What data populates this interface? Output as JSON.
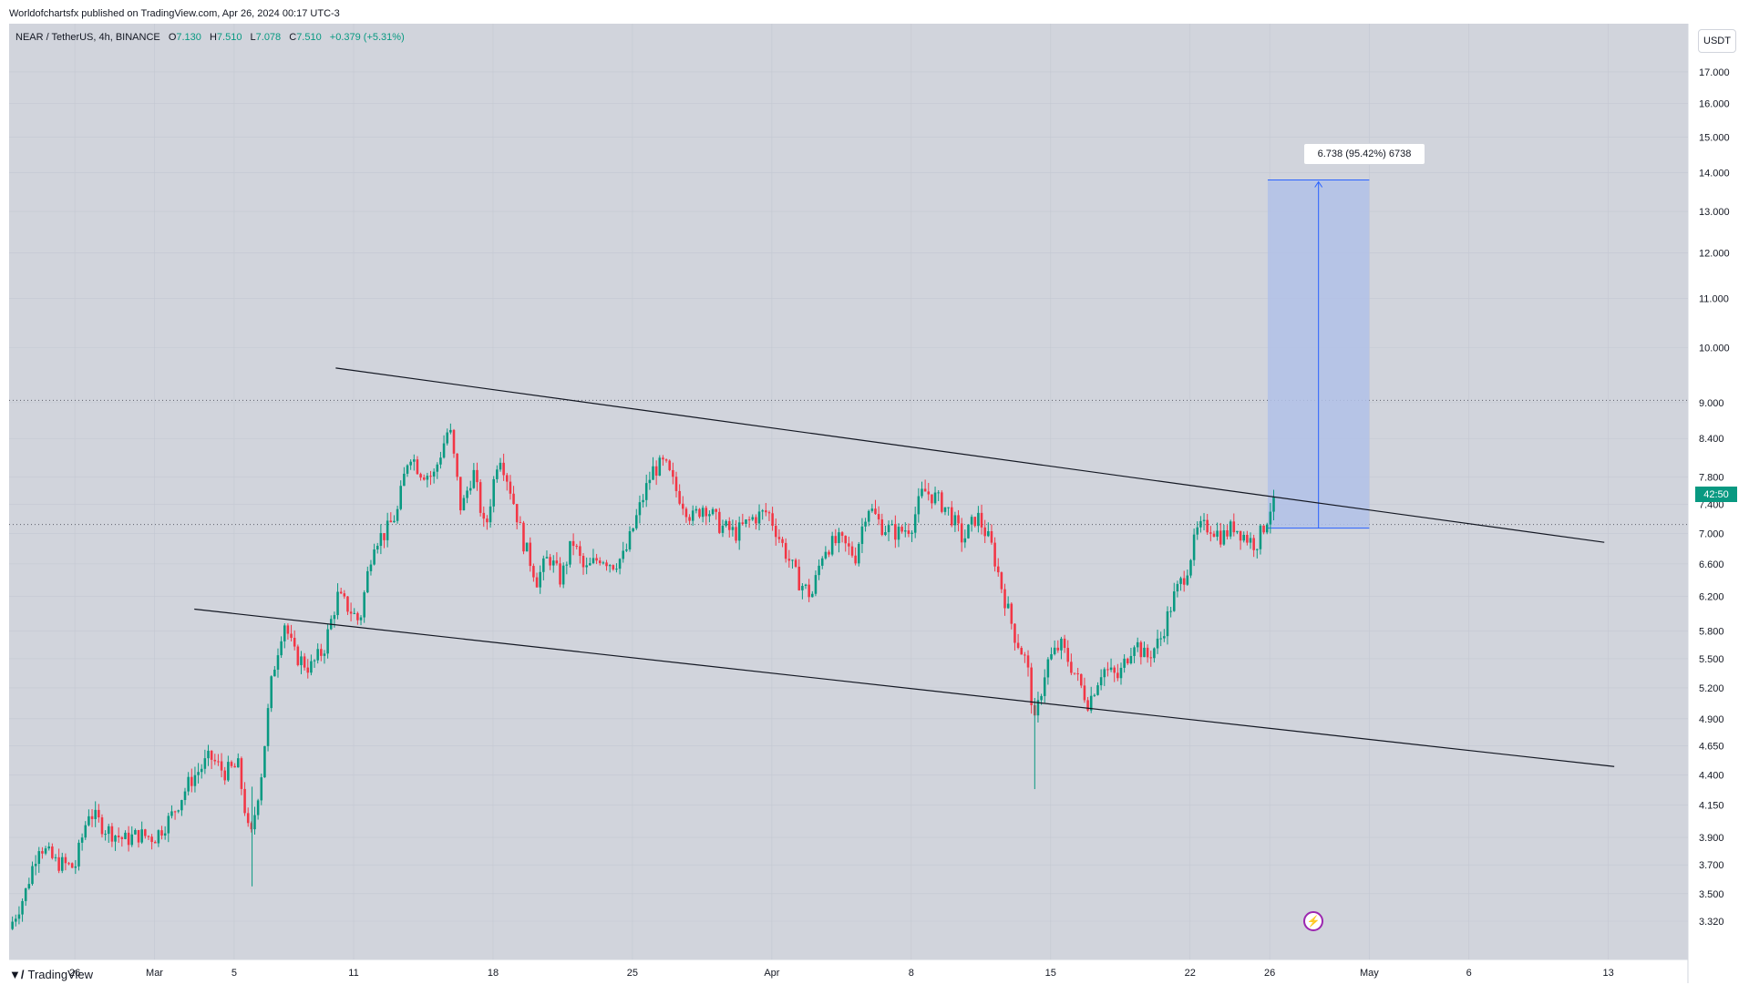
{
  "header": {
    "publisher": "Worldofchartsfx published on TradingView.com, Apr 26, 2024 00:17 UTC-3"
  },
  "legend": {
    "symbol": "NEAR / TetherUS, 4h, BINANCE",
    "open_label": "O",
    "open": "7.130",
    "high_label": "H",
    "high": "7.510",
    "low_label": "L",
    "low": "7.078",
    "close_label": "C",
    "close": "7.510",
    "change": "+0.379 (+5.31%)"
  },
  "unit_button": "USDT",
  "price_badge": "42:50",
  "measure_label": "6.738 (95.42%) 6738",
  "footer": {
    "logo": "TradingView"
  },
  "colors": {
    "background": "#d1d4dc",
    "up": "#089981",
    "down": "#f23645",
    "measure_fill": "#b2c1e8",
    "measure_line": "#2962ff",
    "trendline": "#131722"
  },
  "icons": [
    "tradingview-logo-icon",
    "lightning-bolt-icon"
  ],
  "chart_data": {
    "type": "candlestick",
    "symbol": "NEAR / TetherUS",
    "interval": "4h",
    "exchange": "BINANCE",
    "y_tick_labels": [
      "17.000",
      "16.000",
      "15.000",
      "14.000",
      "13.000",
      "12.000",
      "11.000",
      "10.000",
      "9.000",
      "8.400",
      "7.800",
      "7.400",
      "7.000",
      "6.600",
      "6.200",
      "5.800",
      "5.500",
      "5.200",
      "4.900",
      "4.650",
      "4.400",
      "4.150",
      "3.900",
      "3.700",
      "3.500",
      "3.320"
    ],
    "y_tick_values": [
      17.0,
      16.0,
      15.0,
      14.0,
      13.0,
      12.0,
      11.0,
      10.0,
      9.0,
      8.4,
      7.8,
      7.4,
      7.0,
      6.6,
      6.2,
      5.8,
      5.5,
      5.2,
      4.9,
      4.65,
      4.4,
      4.15,
      3.9,
      3.7,
      3.5,
      3.32
    ],
    "y_scale": "log",
    "ylim": [
      3.2,
      18.2
    ],
    "x_tick_labels": [
      "26",
      "Mar",
      "5",
      "11",
      "18",
      "25",
      "Apr",
      "8",
      "15",
      "22",
      "26",
      "May",
      "6",
      "13"
    ],
    "x_tick_days": [
      -4,
      0,
      4,
      10,
      17,
      24,
      31,
      38,
      45,
      52,
      56,
      61,
      66,
      73
    ],
    "x_range_days": [
      -7.3,
      77
    ],
    "close_path": [
      [
        -7.3,
        3.27
      ],
      [
        -6.5,
        3.5
      ],
      [
        -5.8,
        3.85
      ],
      [
        -5,
        3.72
      ],
      [
        -4,
        3.68
      ],
      [
        -3.3,
        4.1
      ],
      [
        -2.5,
        3.97
      ],
      [
        -1.5,
        3.88
      ],
      [
        -0.8,
        3.92
      ],
      [
        0,
        3.9
      ],
      [
        0.8,
        4.05
      ],
      [
        1.8,
        4.35
      ],
      [
        2.8,
        4.55
      ],
      [
        3.5,
        4.42
      ],
      [
        4.2,
        4.47
      ],
      [
        4.8,
        3.85
      ],
      [
        5.4,
        4.45
      ],
      [
        5.9,
        5.3
      ],
      [
        6.5,
        5.92
      ],
      [
        7,
        5.55
      ],
      [
        7.8,
        5.4
      ],
      [
        8.5,
        5.6
      ],
      [
        9.2,
        6.2
      ],
      [
        9.8,
        6.05
      ],
      [
        10.3,
        5.9
      ],
      [
        11,
        6.9
      ],
      [
        11.6,
        7.0
      ],
      [
        12.2,
        7.3
      ],
      [
        12.8,
        8.2
      ],
      [
        13.3,
        7.9
      ],
      [
        14,
        7.8
      ],
      [
        14.8,
        8.6
      ],
      [
        15.4,
        7.3
      ],
      [
        16,
        7.9
      ],
      [
        16.6,
        7.0
      ],
      [
        17.3,
        8.2
      ],
      [
        17.8,
        7.7
      ],
      [
        18.5,
        6.9
      ],
      [
        19.2,
        6.4
      ],
      [
        19.8,
        6.7
      ],
      [
        20.4,
        6.4
      ],
      [
        21,
        6.9
      ],
      [
        21.6,
        6.5
      ],
      [
        22.4,
        6.7
      ],
      [
        23,
        6.6
      ],
      [
        23.6,
        6.7
      ],
      [
        24.3,
        7.3
      ],
      [
        25,
        7.9
      ],
      [
        25.6,
        8.0
      ],
      [
        26.2,
        7.6
      ],
      [
        27,
        7.2
      ],
      [
        27.6,
        7.4
      ],
      [
        28.4,
        7.1
      ],
      [
        29.2,
        7.0
      ],
      [
        30,
        7.2
      ],
      [
        30.8,
        7.3
      ],
      [
        31.6,
        6.8
      ],
      [
        32.3,
        6.4
      ],
      [
        33,
        6.2
      ],
      [
        33.6,
        6.8
      ],
      [
        34.4,
        6.9
      ],
      [
        35.2,
        6.7
      ],
      [
        35.8,
        7.4
      ],
      [
        36.5,
        7.1
      ],
      [
        37.3,
        7.0
      ],
      [
        38,
        7.1
      ],
      [
        38.6,
        7.6
      ],
      [
        39.2,
        7.5
      ],
      [
        39.9,
        7.3
      ],
      [
        40.6,
        6.9
      ],
      [
        41.3,
        7.25
      ],
      [
        42,
        6.85
      ],
      [
        42.6,
        6.25
      ],
      [
        43.2,
        5.75
      ],
      [
        43.8,
        5.45
      ],
      [
        44.2,
        4.85
      ],
      [
        44.8,
        5.45
      ],
      [
        45.5,
        5.65
      ],
      [
        46.2,
        5.35
      ],
      [
        46.9,
        5.05
      ],
      [
        47.6,
        5.4
      ],
      [
        48.4,
        5.3
      ],
      [
        49.2,
        5.7
      ],
      [
        49.8,
        5.5
      ],
      [
        50.5,
        5.7
      ],
      [
        51.2,
        6.2
      ],
      [
        51.8,
        6.5
      ],
      [
        52.4,
        7.05
      ],
      [
        53,
        7.1
      ],
      [
        53.6,
        6.95
      ],
      [
        54.2,
        7.1
      ],
      [
        54.8,
        6.95
      ],
      [
        55.3,
        6.85
      ],
      [
        55.8,
        7.15
      ],
      [
        56.2,
        7.5
      ]
    ],
    "trendlines": [
      {
        "name": "upper",
        "points": [
          [
            9.1,
            9.62
          ],
          [
            72.8,
            6.88
          ]
        ]
      },
      {
        "name": "lower",
        "points": [
          [
            2.0,
            6.05
          ],
          [
            73.3,
            4.47
          ]
        ]
      }
    ],
    "horizontal_lines": [
      9.04,
      7.12
    ],
    "measure": {
      "from": [
        55.9,
        7.07
      ],
      "to": [
        61.0,
        13.81
      ],
      "label": "6.738 (95.42%) 6738"
    },
    "last_price": 7.51
  }
}
